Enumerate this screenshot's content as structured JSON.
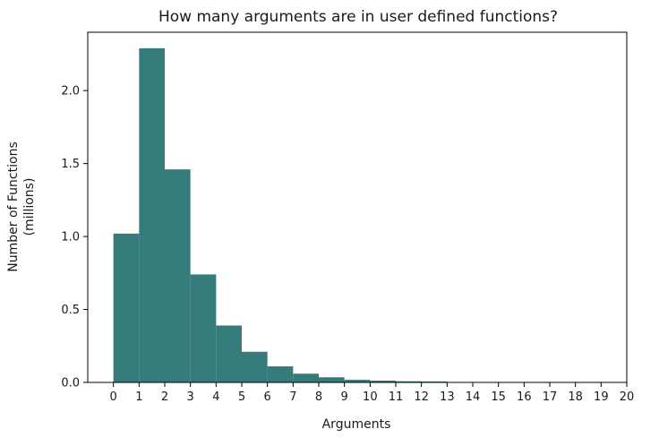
{
  "chart_data": {
    "type": "bar",
    "title": "How many arguments are in user defined functions?",
    "xlabel": "Arguments",
    "ylabel_lines": [
      "Number of Functions",
      "(millions)"
    ],
    "bar_color": "#367b7b",
    "x_ticks": [
      0,
      1,
      2,
      3,
      4,
      5,
      6,
      7,
      8,
      9,
      10,
      11,
      12,
      13,
      14,
      15,
      16,
      17,
      18,
      19,
      20
    ],
    "y_ticks": [
      "0.0",
      "0.5",
      "1.0",
      "1.5",
      "2.0"
    ],
    "xlim": [
      -1,
      20
    ],
    "ylim": [
      0,
      2.4
    ],
    "bins": [
      {
        "start": 0,
        "end": 1,
        "value": 1.02
      },
      {
        "start": 1,
        "end": 2,
        "value": 2.29
      },
      {
        "start": 2,
        "end": 3,
        "value": 1.46
      },
      {
        "start": 3,
        "end": 4,
        "value": 0.74
      },
      {
        "start": 4,
        "end": 5,
        "value": 0.39
      },
      {
        "start": 5,
        "end": 6,
        "value": 0.21
      },
      {
        "start": 6,
        "end": 7,
        "value": 0.11
      },
      {
        "start": 7,
        "end": 8,
        "value": 0.06
      },
      {
        "start": 8,
        "end": 9,
        "value": 0.035
      },
      {
        "start": 9,
        "end": 10,
        "value": 0.018
      },
      {
        "start": 10,
        "end": 11,
        "value": 0.012
      },
      {
        "start": 11,
        "end": 12,
        "value": 0.008
      },
      {
        "start": 12,
        "end": 13,
        "value": 0.006
      }
    ]
  }
}
